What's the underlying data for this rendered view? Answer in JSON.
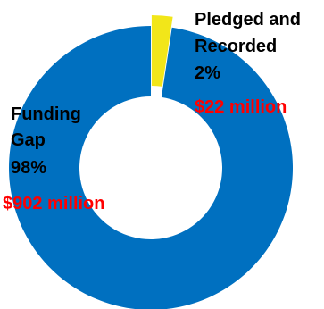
{
  "chart_data": {
    "type": "pie",
    "donut": true,
    "title": "",
    "slices": [
      {
        "label_lines": [
          "Pledged and",
          "Recorded"
        ],
        "percent_label": "2%",
        "amount_label": "$22 million",
        "value": 22,
        "color": "#f2e619"
      },
      {
        "label_lines": [
          "Funding",
          "Gap"
        ],
        "percent_label": "98%",
        "amount_label": "$902 million",
        "value": 902,
        "color": "#0070c0"
      }
    ],
    "label_color": "#000000",
    "amount_color": "#ff0000"
  }
}
